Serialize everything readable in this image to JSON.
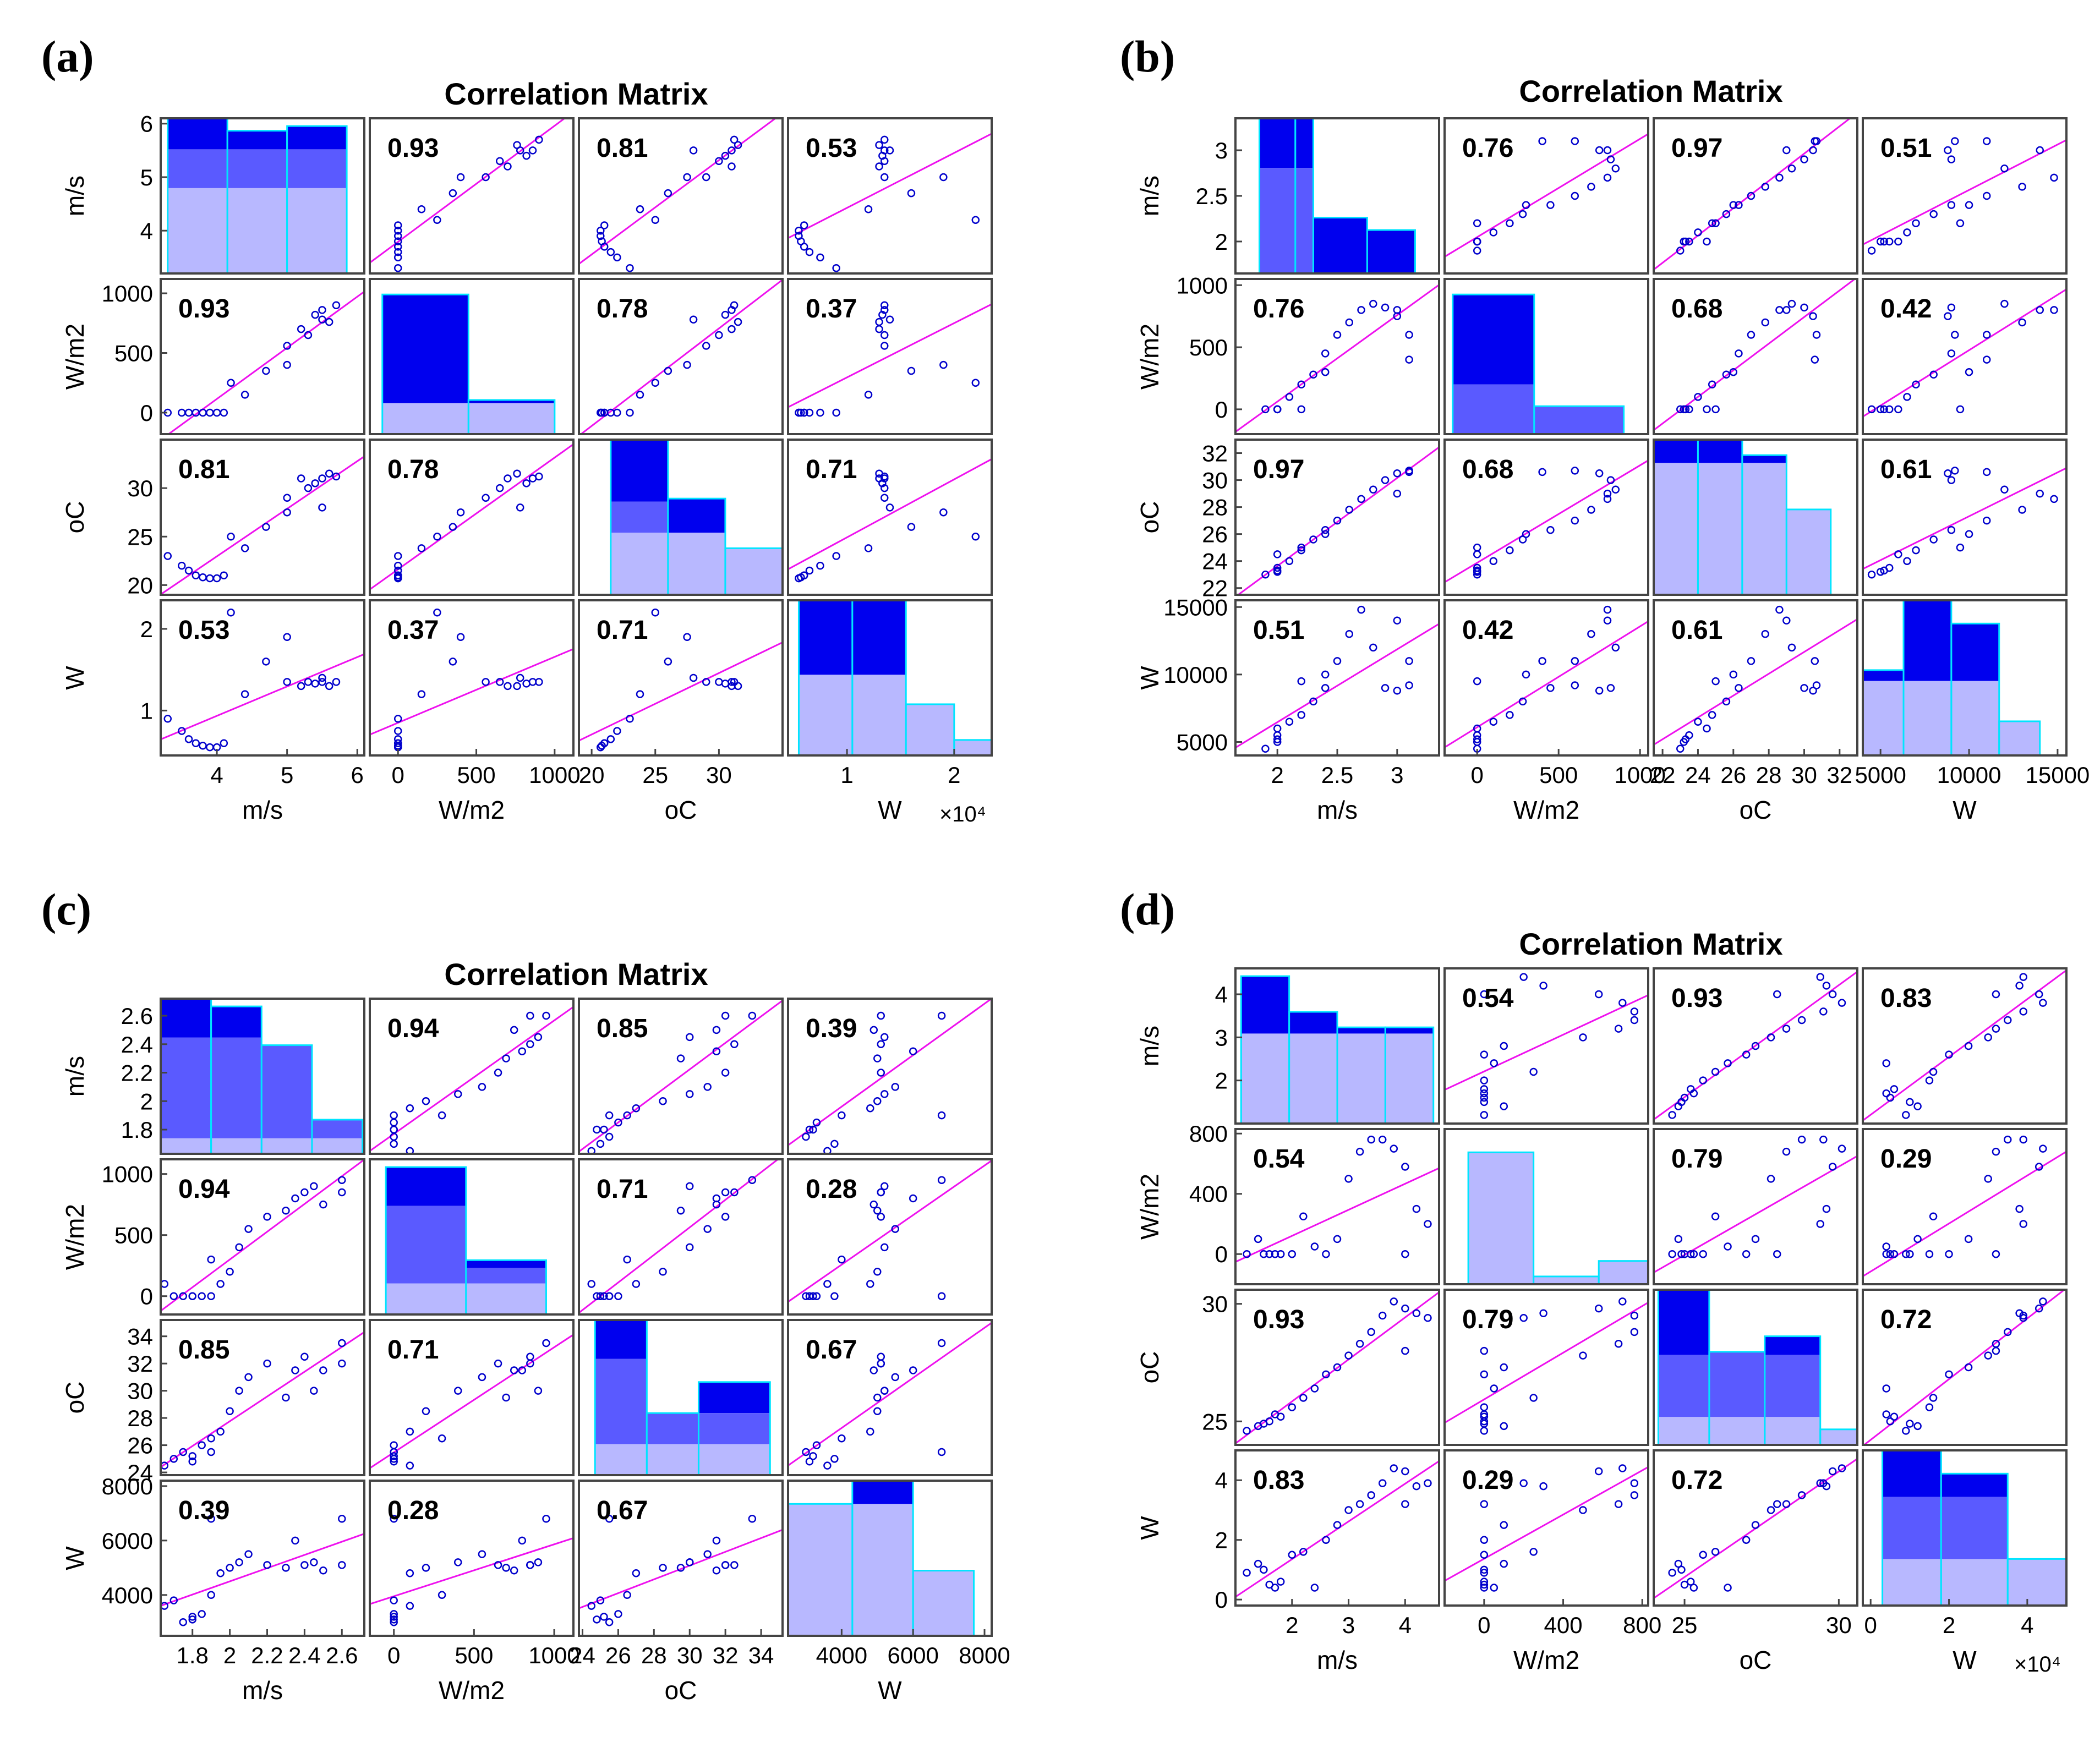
{
  "colors": {
    "bar_dark": "#0000ee",
    "bar_mid": "#5a5aff",
    "bar_light": "#9a9aff",
    "edge_cyan": "#00e5ff",
    "fit_line": "#ee11ee",
    "marker": "#0000cc",
    "frame": "#444444"
  },
  "chart_data": [
    {
      "panel_label": "(a)",
      "title": "Correlation Matrix",
      "type": "scatter",
      "variables": [
        {
          "label": "m/s",
          "range": [
            3.2,
            6.1
          ],
          "ticks": [
            4,
            5,
            6
          ],
          "tick_labels": [
            "4",
            "5",
            "6"
          ],
          "exp": ""
        },
        {
          "label": "W/m2",
          "range": [
            -180,
            1120
          ],
          "ticks": [
            0,
            500,
            1000
          ],
          "tick_labels": [
            "0",
            "500",
            "1000"
          ],
          "exp": ""
        },
        {
          "label": "oC",
          "range": [
            19,
            35
          ],
          "ticks": [
            20,
            25,
            30
          ],
          "tick_labels": [
            "20",
            "25",
            "30"
          ],
          "exp": ""
        },
        {
          "label": "W",
          "range": [
            0.45,
            2.35
          ],
          "ticks": [
            1,
            2
          ],
          "tick_labels": [
            "1",
            "2"
          ],
          "exp": "×10⁴"
        }
      ],
      "correlations": [
        [
          "",
          "0.93",
          "0.81",
          "0.53"
        ],
        [
          "0.93",
          "",
          "0.78",
          "0.37"
        ],
        [
          "0.81",
          "0.78",
          "",
          "0.71"
        ],
        [
          "0.53",
          "0.37",
          "0.71",
          ""
        ]
      ],
      "histograms": [
        {
          "edges": [
            3.3,
            4.15,
            5.0,
            5.85
          ],
          "totals": [
            1,
            0.92,
            0.95
          ],
          "lower": [
            0.8,
            0.8,
            0.8
          ],
          "base": [
            0.55,
            0.55,
            0.55
          ]
        },
        {
          "edges": [
            -100,
            450,
            1000
          ],
          "totals": [
            0.9,
            0.22
          ],
          "lower": [
            0.2,
            0.2
          ],
          "base": [
            0.2,
            0.2
          ]
        },
        {
          "edges": [
            21.5,
            26,
            30.5,
            35
          ],
          "totals": [
            1,
            0.62,
            0.3
          ],
          "lower": [
            0.6,
            0.4,
            0.3
          ],
          "base": [
            0.4,
            0.4,
            0.3
          ]
        },
        {
          "edges": [
            0.55,
            1.05,
            1.55,
            2.0,
            2.35
          ],
          "totals": [
            1,
            1,
            0.33,
            0.1
          ],
          "lower": [
            0.52,
            0.52,
            0.33,
            0.1
          ],
          "base": [
            0.52,
            0.52,
            0.33,
            0.1
          ]
        }
      ],
      "observations": [
        [
          3.3,
          3.5,
          3.6,
          3.7,
          3.8,
          3.9,
          4.0,
          4.1,
          4.4,
          4.7,
          5.0,
          5.2,
          5.4,
          5.5,
          5.5,
          5.6,
          5.0,
          5.3,
          4.2,
          5.7
        ],
        [
          0,
          0,
          0,
          0,
          0,
          0,
          0,
          0,
          150,
          350,
          560,
          700,
          820,
          860,
          780,
          760,
          400,
          650,
          250,
          900
        ],
        [
          23.0,
          22.0,
          21.5,
          21.0,
          20.8,
          20.7,
          20.7,
          21.0,
          23.8,
          26.0,
          29.0,
          31.0,
          30.5,
          31.0,
          28.0,
          31.5,
          27.5,
          30.0,
          25.0,
          31.2
        ],
        [
          0.9,
          0.75,
          0.65,
          0.6,
          0.57,
          0.55,
          0.55,
          0.6,
          1.2,
          1.6,
          1.35,
          1.3,
          1.33,
          1.35,
          1.4,
          1.3,
          1.9,
          1.35,
          2.2,
          1.35
        ]
      ]
    },
    {
      "panel_label": "(b)",
      "title": "Correlation Matrix",
      "type": "scatter",
      "variables": [
        {
          "label": "m/s",
          "range": [
            1.65,
            3.35
          ],
          "ticks": [
            2,
            2.5,
            3
          ],
          "tick_labels": [
            "2",
            "2.5",
            "3"
          ],
          "exp": ""
        },
        {
          "label": "W/m2",
          "range": [
            -200,
            1050
          ],
          "ticks": [
            0,
            500,
            1000
          ],
          "tick_labels": [
            "0",
            "500",
            "1000"
          ],
          "exp": ""
        },
        {
          "label": "oC",
          "range": [
            21.5,
            33
          ],
          "ticks": [
            22,
            24,
            26,
            28,
            30,
            32
          ],
          "tick_labels": [
            "22",
            "24",
            "26",
            "28",
            "30",
            "32"
          ],
          "exp": ""
        },
        {
          "label": "W",
          "range": [
            4000,
            15500
          ],
          "ticks": [
            5000,
            10000,
            15000
          ],
          "tick_labels": [
            "5000",
            "10000",
            "15000"
          ],
          "exp": ""
        }
      ],
      "correlations": [
        [
          "",
          "0.76",
          "0.97",
          "0.51"
        ],
        [
          "0.76",
          "",
          "0.68",
          "0.42"
        ],
        [
          "0.97",
          "0.68",
          "",
          "0.61"
        ],
        [
          "0.51",
          "0.42",
          "0.61",
          ""
        ]
      ],
      "histograms": [
        {
          "edges": [
            1.85,
            2.15,
            2.3,
            2.75,
            3.15
          ],
          "totals": [
            1,
            1,
            0.36,
            0.28
          ],
          "lower": [
            0.68,
            0.68,
            0,
            0
          ],
          "base": [
            0,
            0,
            0,
            0
          ]
        },
        {
          "edges": [
            -150,
            350,
            900
          ],
          "totals": [
            0.9,
            0.18
          ],
          "lower": [
            0.32,
            0.18
          ],
          "base": [
            0,
            0
          ]
        },
        {
          "edges": [
            21.5,
            24.0,
            26.5,
            29.0,
            31.5
          ],
          "totals": [
            1,
            1,
            0.9,
            0.55
          ],
          "lower": [
            0.85,
            0.85,
            0.85,
            0.55
          ],
          "base": [
            0.85,
            0.85,
            0.85,
            0.55
          ]
        },
        {
          "edges": [
            4000,
            6300,
            9000,
            11700,
            14000
          ],
          "totals": [
            0.55,
            1,
            0.85,
            0.22
          ],
          "lower": [
            0.48,
            0.48,
            0.48,
            0.22
          ],
          "base": [
            0.48,
            0.48,
            0.48,
            0.22
          ]
        }
      ],
      "observations": [
        [
          1.9,
          2.0,
          2.0,
          2.1,
          2.2,
          2.3,
          2.4,
          2.5,
          2.6,
          2.7,
          2.8,
          2.9,
          3.0,
          3.1,
          3.1,
          2.0,
          2.2,
          2.4,
          3.0,
          2.0
        ],
        [
          0,
          0,
          0,
          100,
          200,
          280,
          450,
          600,
          700,
          800,
          850,
          820,
          750,
          600,
          400,
          0,
          0,
          300,
          800,
          0
        ],
        [
          23.0,
          23.2,
          23.5,
          24.0,
          24.8,
          25.6,
          26.3,
          27.0,
          27.8,
          28.6,
          29.3,
          30.0,
          30.5,
          30.7,
          30.6,
          24.5,
          25.0,
          26.0,
          29.0,
          23.3
        ],
        [
          4500,
          5000,
          5500,
          6500,
          7000,
          8000,
          9000,
          11000,
          13000,
          14800,
          12000,
          9000,
          8800,
          9200,
          11000,
          6000,
          9500,
          10000,
          14000,
          5200
        ]
      ]
    },
    {
      "panel_label": "(c)",
      "title": "Correlation Matrix",
      "type": "scatter",
      "variables": [
        {
          "label": "m/s",
          "range": [
            1.63,
            2.72
          ],
          "ticks": [
            1.8,
            2,
            2.2,
            2.4,
            2.6
          ],
          "tick_labels": [
            "1.8",
            "2",
            "2.2",
            "2.4",
            "2.6"
          ],
          "exp": ""
        },
        {
          "label": "W/m2",
          "range": [
            -150,
            1120
          ],
          "ticks": [
            0,
            500,
            1000
          ],
          "tick_labels": [
            "0",
            "500",
            "1000"
          ],
          "exp": ""
        },
        {
          "label": "oC",
          "range": [
            23.8,
            35.2
          ],
          "ticks": [
            24,
            26,
            28,
            30,
            32,
            34
          ],
          "tick_labels": [
            "24",
            "26",
            "28",
            "30",
            "32",
            "34"
          ],
          "exp": ""
        },
        {
          "label": "W",
          "range": [
            2500,
            8200
          ],
          "ticks": [
            4000,
            6000,
            8000
          ],
          "tick_labels": [
            "4000",
            "6000",
            "8000"
          ],
          "exp": ""
        }
      ],
      "correlations": [
        [
          "",
          "0.94",
          "0.85",
          "0.39"
        ],
        [
          "0.94",
          "",
          "0.71",
          "0.28"
        ],
        [
          "0.85",
          "0.71",
          "",
          "0.67"
        ],
        [
          "0.39",
          "0.28",
          "0.67",
          ""
        ]
      ],
      "histograms": [
        {
          "edges": [
            1.63,
            1.9,
            2.17,
            2.44,
            2.71
          ],
          "totals": [
            1,
            0.95,
            0.7,
            0.22
          ],
          "lower": [
            0.75,
            0.75,
            0.7,
            0.22
          ],
          "base": [
            0.1,
            0.1,
            0.1,
            0.1
          ]
        },
        {
          "edges": [
            -50,
            450,
            950
          ],
          "totals": [
            0.95,
            0.35
          ],
          "lower": [
            0.7,
            0.3
          ],
          "base": [
            0.2,
            0.2
          ]
        },
        {
          "edges": [
            24.7,
            27.6,
            30.5,
            34.5
          ],
          "totals": [
            1,
            0.4,
            0.6
          ],
          "lower": [
            0.75,
            0.4,
            0.4
          ],
          "base": [
            0.2,
            0.2,
            0.2
          ]
        },
        {
          "edges": [
            2500,
            4300,
            6000,
            7700
          ],
          "totals": [
            0.85,
            1,
            0.42
          ],
          "lower": [
            0.85,
            0.85,
            0.42
          ],
          "base": [
            0.85,
            0.85,
            0.42
          ]
        }
      ],
      "observations": [
        [
          1.65,
          1.7,
          1.75,
          1.8,
          1.8,
          1.85,
          1.9,
          1.95,
          2.0,
          2.05,
          2.1,
          2.2,
          2.3,
          2.35,
          2.4,
          2.45,
          2.5,
          2.6,
          2.6,
          1.9
        ],
        [
          100,
          0,
          0,
          0,
          0,
          0,
          300,
          100,
          200,
          400,
          550,
          650,
          700,
          800,
          850,
          900,
          750,
          850,
          950,
          0
        ],
        [
          24.5,
          25.0,
          25.5,
          24.8,
          25.2,
          26.0,
          26.5,
          27.0,
          28.5,
          30.0,
          31.0,
          32.0,
          29.5,
          31.5,
          32.5,
          30.0,
          31.5,
          32.0,
          33.5,
          25.5
        ],
        [
          3600,
          3800,
          3000,
          3100,
          3200,
          3300,
          4000,
          4800,
          5000,
          5200,
          5500,
          5100,
          5000,
          6000,
          5100,
          5200,
          4900,
          5100,
          6800,
          6800
        ]
      ]
    },
    {
      "panel_label": "(d)",
      "title": "Correlation Matrix",
      "type": "scatter",
      "variables": [
        {
          "label": "m/s",
          "range": [
            1.0,
            4.6
          ],
          "ticks": [
            2,
            3,
            4
          ],
          "tick_labels": [
            "2",
            "3",
            "4"
          ],
          "exp": ""
        },
        {
          "label": "W/m2",
          "range": [
            -200,
            830
          ],
          "ticks": [
            0,
            400,
            800
          ],
          "tick_labels": [
            "0",
            "400",
            "800"
          ],
          "exp": ""
        },
        {
          "label": "oC",
          "range": [
            24.0,
            30.6
          ],
          "ticks": [
            25,
            30
          ],
          "tick_labels": [
            "25",
            "30"
          ],
          "exp": ""
        },
        {
          "label": "W",
          "range": [
            -0.2,
            5.0
          ],
          "ticks": [
            0,
            2,
            4
          ],
          "tick_labels": [
            "0",
            "2",
            "4"
          ],
          "exp": "×10⁴"
        }
      ],
      "correlations": [
        [
          "",
          "0.54",
          "0.93",
          "0.83"
        ],
        [
          "0.54",
          "",
          "0.79",
          "0.29"
        ],
        [
          "0.93",
          "0.79",
          "",
          "0.72"
        ],
        [
          "0.83",
          "0.29",
          "0.72",
          ""
        ]
      ],
      "histograms": [
        {
          "edges": [
            1.1,
            1.95,
            2.8,
            3.65,
            4.5
          ],
          "totals": [
            0.95,
            0.72,
            0.62,
            0.62
          ],
          "lower": [
            0.58,
            0.58,
            0.58,
            0.58
          ],
          "base": [
            0.58,
            0.58,
            0.58,
            0.58
          ]
        },
        {
          "edges": [
            -80,
            250,
            580,
            830
          ],
          "totals": [
            0.85,
            0.05,
            0.15
          ],
          "lower": [
            0.85,
            0.05,
            0.15
          ],
          "base": [
            0.85,
            0.05,
            0.15
          ]
        },
        {
          "edges": [
            24.15,
            25.8,
            27.6,
            29.4,
            30.6
          ],
          "totals": [
            1,
            0.6,
            0.7,
            0.1
          ],
          "lower": [
            0.58,
            0.6,
            0.58,
            0.1
          ],
          "base": [
            0.18,
            0.18,
            0.18,
            0.1
          ]
        },
        {
          "edges": [
            0.3,
            1.8,
            3.5,
            5.0
          ],
          "totals": [
            1,
            0.85,
            0.3
          ],
          "lower": [
            0.7,
            0.7,
            0.3
          ],
          "base": [
            0.3,
            0.3,
            0.3
          ]
        }
      ],
      "observations": [
        [
          1.2,
          1.4,
          1.5,
          1.6,
          1.7,
          1.8,
          2.0,
          2.2,
          2.4,
          2.6,
          2.8,
          3.0,
          3.2,
          3.4,
          3.6,
          3.8,
          4.0,
          4.2,
          4.4,
          4.0
        ],
        [
          0,
          100,
          0,
          0,
          0,
          0,
          0,
          250,
          50,
          0,
          100,
          500,
          680,
          760,
          760,
          700,
          580,
          300,
          200,
          0
        ],
        [
          24.6,
          24.8,
          24.9,
          25.0,
          25.3,
          25.2,
          25.6,
          26.0,
          26.4,
          27.0,
          27.3,
          27.8,
          28.3,
          28.8,
          29.5,
          30.1,
          29.8,
          29.6,
          29.4,
          28.0
        ],
        [
          0.9,
          1.2,
          1.0,
          0.5,
          0.4,
          0.6,
          1.5,
          1.6,
          0.4,
          2.0,
          2.5,
          3.0,
          3.2,
          3.5,
          3.9,
          4.4,
          4.3,
          3.8,
          3.9,
          3.2
        ]
      ]
    }
  ]
}
